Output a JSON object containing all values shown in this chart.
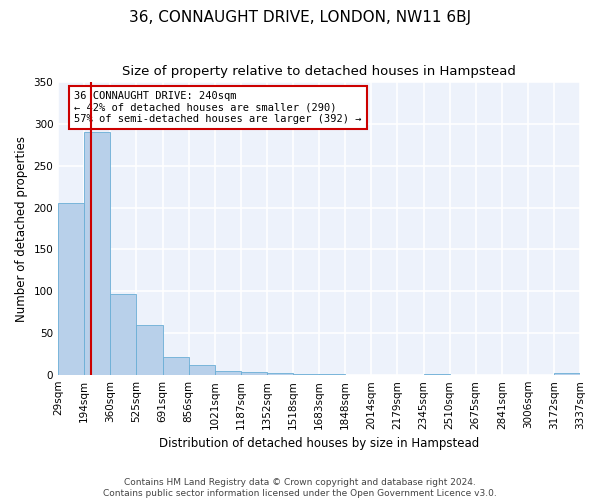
{
  "title": "36, CONNAUGHT DRIVE, LONDON, NW11 6BJ",
  "subtitle": "Size of property relative to detached houses in Hampstead",
  "xlabel": "Distribution of detached houses by size in Hampstead",
  "ylabel": "Number of detached properties",
  "footer_line1": "Contains HM Land Registry data © Crown copyright and database right 2024.",
  "footer_line2": "Contains public sector information licensed under the Open Government Licence v3.0.",
  "bin_edges": [
    29,
    194,
    360,
    525,
    691,
    856,
    1021,
    1187,
    1352,
    1518,
    1683,
    1848,
    2014,
    2179,
    2345,
    2510,
    2675,
    2841,
    3006,
    3172,
    3337
  ],
  "bin_labels": [
    "29sqm",
    "194sqm",
    "360sqm",
    "525sqm",
    "691sqm",
    "856sqm",
    "1021sqm",
    "1187sqm",
    "1352sqm",
    "1518sqm",
    "1683sqm",
    "1848sqm",
    "2014sqm",
    "2179sqm",
    "2345sqm",
    "2510sqm",
    "2675sqm",
    "2841sqm",
    "3006sqm",
    "3172sqm",
    "3337sqm"
  ],
  "bar_heights": [
    205,
    290,
    97,
    60,
    21,
    12,
    5,
    4,
    2,
    1,
    1,
    0,
    0,
    0,
    1,
    0,
    0,
    0,
    0,
    2
  ],
  "bar_color": "#b8d0ea",
  "bar_edge_color": "#6aaed6",
  "property_size": 240,
  "annotation_line1": "36 CONNAUGHT DRIVE: 240sqm",
  "annotation_line2": "← 42% of detached houses are smaller (290)",
  "annotation_line3": "57% of semi-detached houses are larger (392) →",
  "vline_color": "#cc0000",
  "annotation_box_edgecolor": "#cc0000",
  "ylim": [
    0,
    350
  ],
  "background_color": "#edf2fb",
  "title_fontsize": 11,
  "subtitle_fontsize": 9.5,
  "ylabel_fontsize": 8.5,
  "xlabel_fontsize": 8.5,
  "tick_fontsize": 7.5,
  "annot_fontsize": 7.5,
  "footer_fontsize": 6.5
}
